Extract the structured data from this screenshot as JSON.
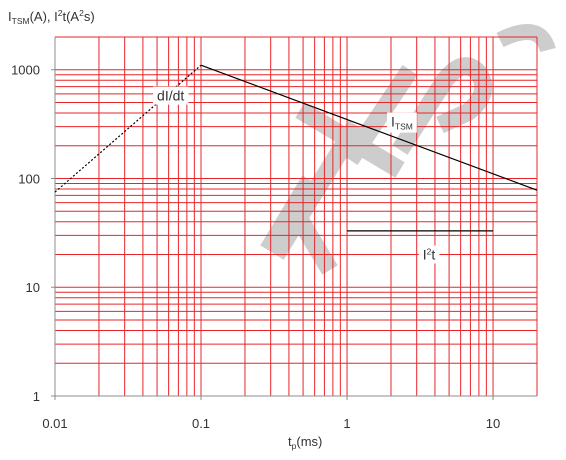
{
  "chart_data": {
    "type": "line",
    "x_scale": "log",
    "y_scale": "log",
    "xlim": [
      0.01,
      20
    ],
    "ylim": [
      1,
      2000
    ],
    "grid": true,
    "y_axis_title": {
      "p1": "I",
      "p1_sub": "TSM",
      "p2": "(A), I",
      "p2_sup": "2",
      "p3": "t(A",
      "p3_sup": "2",
      "p4": "s)"
    },
    "x_axis_title": {
      "p1": "t",
      "p1_sub": "p",
      "p2": "(ms)"
    },
    "x_ticks": [
      {
        "value": 0.01,
        "label": "0.01"
      },
      {
        "value": 0.1,
        "label": "0.1"
      },
      {
        "value": 1,
        "label": "1"
      },
      {
        "value": 10,
        "label": "10"
      }
    ],
    "y_ticks": [
      {
        "value": 1,
        "label": "1"
      },
      {
        "value": 10,
        "label": "10"
      },
      {
        "value": 100,
        "label": "100"
      },
      {
        "value": 1000,
        "label": "1000"
      }
    ],
    "series": [
      {
        "key": "didt",
        "style": "dashed",
        "points": [
          [
            0.01,
            75
          ],
          [
            0.1,
            1100
          ]
        ]
      },
      {
        "key": "itsm",
        "style": "solid",
        "points": [
          [
            0.1,
            1100
          ],
          [
            20,
            78
          ]
        ]
      },
      {
        "key": "i2t",
        "style": "solid",
        "points": [
          [
            1,
            33
          ],
          [
            10,
            33
          ]
        ]
      }
    ],
    "labels": {
      "didt": {
        "text": "dI/dt",
        "x": 0.05,
        "y": 520
      },
      "itsm": {
        "p1": "I",
        "p1_sub": "TSM",
        "x": 2,
        "y": 300
      },
      "i2t": {
        "p1": "I",
        "p1_sup": "2",
        "p2": "t",
        "x": 3.3,
        "y": 18
      }
    },
    "colors": {
      "grid": "#e8262a",
      "line": "#000000",
      "text": "#333333",
      "watermark": "#8a8a8a"
    }
  },
  "watermark_text": "KTPS"
}
